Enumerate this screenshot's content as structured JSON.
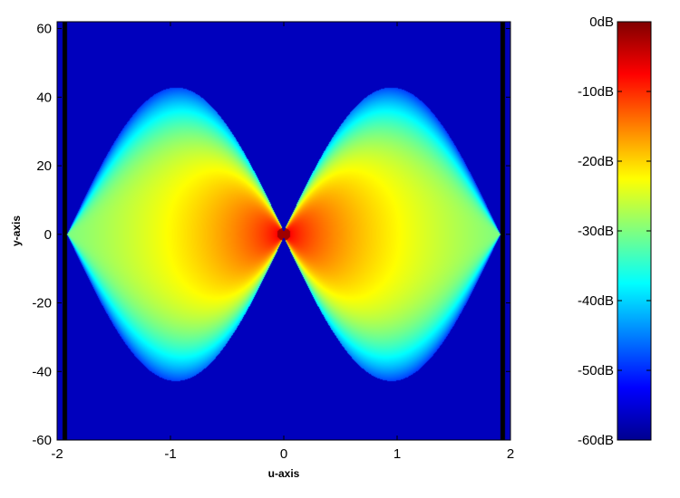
{
  "chart_data": {
    "type": "heatmap",
    "title": "",
    "xlabel": "u-axis",
    "ylabel": "y-axis",
    "xlim": [
      -2,
      2
    ],
    "ylim": [
      -60,
      62
    ],
    "x_ticks": [
      -2,
      -1,
      0,
      1,
      2
    ],
    "y_ticks": [
      -60,
      -40,
      -20,
      0,
      20,
      40,
      60
    ],
    "x_tick_labels": [
      "-2",
      "-1",
      "0",
      "1",
      "2"
    ],
    "y_tick_labels": [
      "-60",
      "-40",
      "-20",
      "0",
      "20",
      "40",
      "60"
    ],
    "colormap": "jet",
    "color_range_db": [
      -60,
      0
    ],
    "colorbar": {
      "position": "right",
      "ticks": [
        0,
        -10,
        -20,
        -30,
        -40,
        -50,
        -60
      ],
      "tick_labels": [
        "0dB",
        "-10dB",
        "-20dB",
        "-30dB",
        "-40dB",
        "-50dB",
        "-60dB"
      ]
    },
    "grid": false,
    "description_values": {
      "peak_db_at_origin": 0,
      "lobe_outer_edge_u_at_y0": 1.9,
      "lobe_max_half_height_y_at_u1": 40,
      "background_db": -60
    }
  }
}
